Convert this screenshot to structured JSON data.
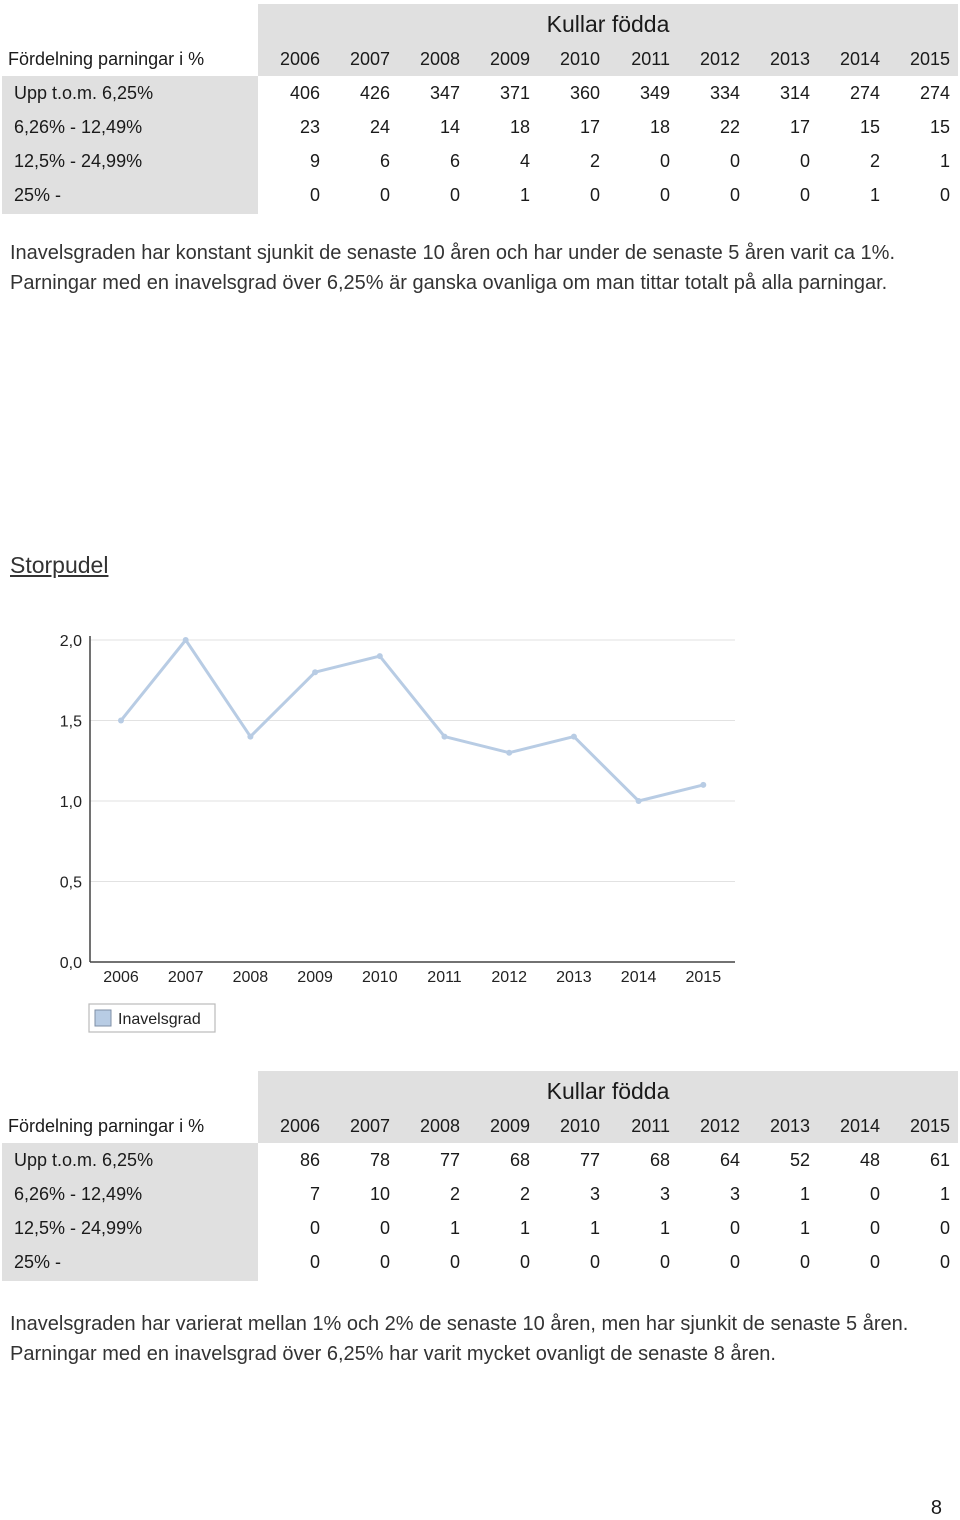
{
  "table1": {
    "group_header": "Kullar födda",
    "row_header": "Fördelning parningar i %",
    "years": [
      "2006",
      "2007",
      "2008",
      "2009",
      "2010",
      "2011",
      "2012",
      "2013",
      "2014",
      "2015"
    ],
    "rows": [
      {
        "label": "Upp t.o.m. 6,25%",
        "values": [
          "406",
          "426",
          "347",
          "371",
          "360",
          "349",
          "334",
          "314",
          "274",
          "274"
        ]
      },
      {
        "label": "6,26% - 12,49%",
        "values": [
          "23",
          "24",
          "14",
          "18",
          "17",
          "18",
          "22",
          "17",
          "15",
          "15"
        ]
      },
      {
        "label": "12,5% - 24,99%",
        "values": [
          "9",
          "6",
          "6",
          "4",
          "2",
          "0",
          "0",
          "0",
          "2",
          "1"
        ]
      },
      {
        "label": "25% -",
        "values": [
          "0",
          "0",
          "0",
          "1",
          "0",
          "0",
          "0",
          "0",
          "1",
          "0"
        ]
      }
    ]
  },
  "paragraph1": "Inavelsgraden har konstant sjunkit de senaste 10 åren och har under de senaste 5 åren varit ca 1%. Parningar med en inavelsgrad över 6,25% är ganska ovanliga om man tittar totalt på alla parningar.",
  "section_title": "Storpudel",
  "chart_data": {
    "type": "line",
    "x": [
      "2006",
      "2007",
      "2008",
      "2009",
      "2010",
      "2011",
      "2012",
      "2013",
      "2014",
      "2015"
    ],
    "series": [
      {
        "name": "Inavelsgrad",
        "values": [
          1.5,
          2.0,
          1.4,
          1.8,
          1.9,
          1.4,
          1.3,
          1.4,
          1.0,
          1.1
        ]
      }
    ],
    "ylim": [
      0,
      2
    ],
    "yticks": [
      "0,0",
      "0,5",
      "1,0",
      "1,5",
      "2,0"
    ],
    "grid": true,
    "legend": "bottom-left",
    "series_color": "#b8cce4"
  },
  "table2": {
    "group_header": "Kullar födda",
    "row_header": "Fördelning parningar i %",
    "years": [
      "2006",
      "2007",
      "2008",
      "2009",
      "2010",
      "2011",
      "2012",
      "2013",
      "2014",
      "2015"
    ],
    "rows": [
      {
        "label": "Upp t.o.m. 6,25%",
        "values": [
          "86",
          "78",
          "77",
          "68",
          "77",
          "68",
          "64",
          "52",
          "48",
          "61"
        ]
      },
      {
        "label": "6,26% - 12,49%",
        "values": [
          "7",
          "10",
          "2",
          "2",
          "3",
          "3",
          "3",
          "1",
          "0",
          "1"
        ]
      },
      {
        "label": "12,5% - 24,99%",
        "values": [
          "0",
          "0",
          "1",
          "1",
          "1",
          "1",
          "0",
          "1",
          "0",
          "0"
        ]
      },
      {
        "label": "25% -",
        "values": [
          "0",
          "0",
          "0",
          "0",
          "0",
          "0",
          "0",
          "0",
          "0",
          "0"
        ]
      }
    ]
  },
  "paragraph2": "Inavelsgraden har varierat mellan 1% och 2% de senaste 10 åren, men har sjunkit de senaste 5 åren. Parningar med en inavelsgrad över 6,25% har varit mycket ovanligt de senaste 8 åren.",
  "page_number": "8"
}
